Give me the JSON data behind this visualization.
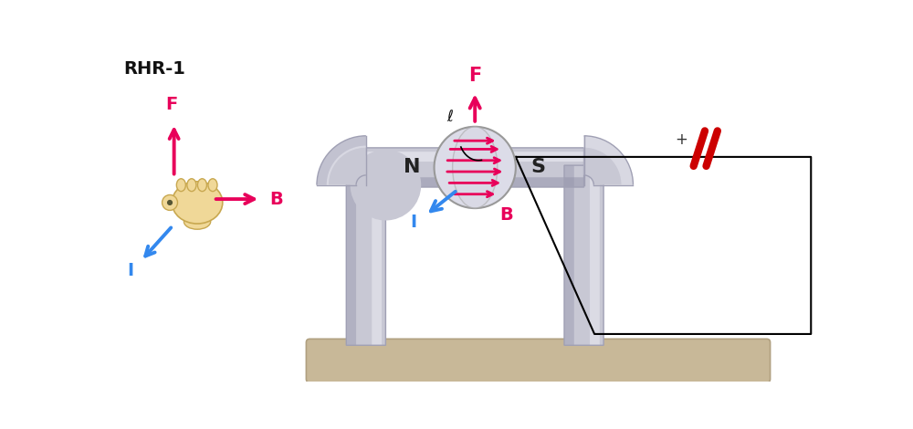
{
  "bg_color": "#ffffff",
  "pipe_color": "#c8c8d4",
  "pipe_edge": "#a0a0b4",
  "pipe_dark": "#9090a8",
  "pipe_light": "#e8e8f0",
  "base_color": "#c8b898",
  "base_edge": "#b0a080",
  "arrow_color": "#e8005a",
  "current_arrow_color": "#3388ee",
  "hand_color": "#f0d898",
  "hand_edge": "#c8a850",
  "rhr_label": "RHR-1",
  "N_label": "N",
  "S_label": "S"
}
